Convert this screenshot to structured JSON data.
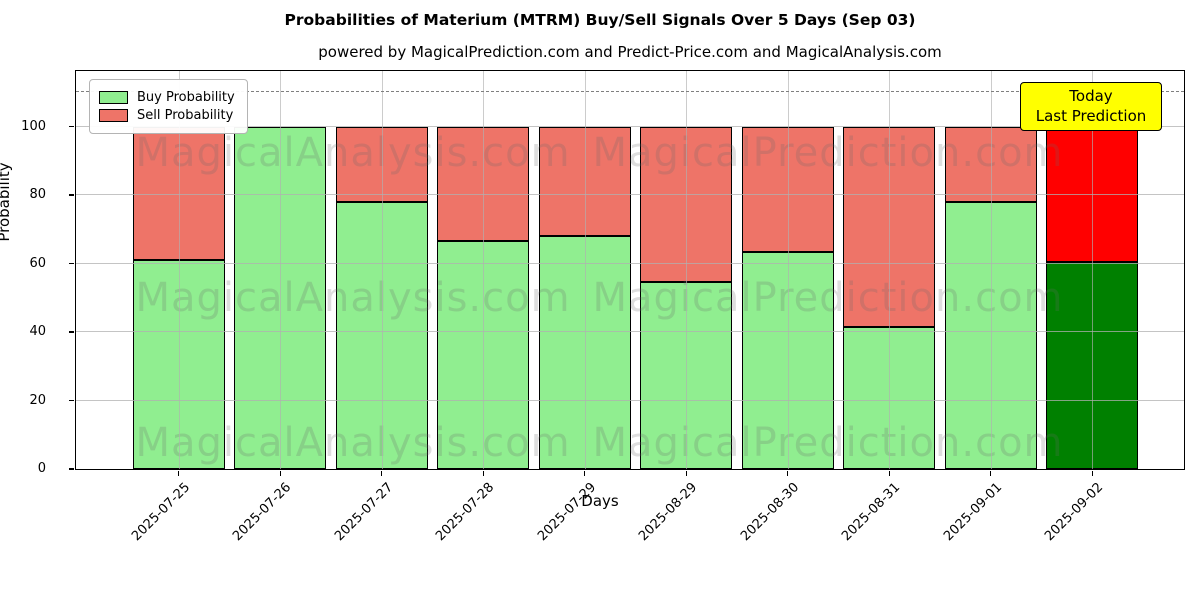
{
  "figure": {
    "title": "Probabilities of Materium (MTRM) Buy/Sell Signals Over 5 Days (Sep 03)",
    "subtitle": "powered by MagicalPrediction.com and Predict-Price.com and MagicalAnalysis.com"
  },
  "axes": {
    "ylabel": "Probability",
    "xlabel": "Days",
    "yticks": [
      0,
      20,
      40,
      60,
      80,
      100
    ]
  },
  "legend": {
    "items": [
      {
        "label": "Buy Probability",
        "color": "#90ee90"
      },
      {
        "label": "Sell Probability",
        "color": "#ee7468"
      }
    ]
  },
  "annotation": {
    "line1": "Today",
    "line2": "Last Prediction",
    "bg_color": "#ffff00"
  },
  "watermarks": {
    "left_text": "MagicalAnalysis.com",
    "right_text": "MagicalPrediction.com"
  },
  "chart_data": {
    "type": "bar",
    "stacked": true,
    "title": "Probabilities of Materium (MTRM) Buy/Sell Signals Over 5 Days (Sep 03)",
    "xlabel": "Days",
    "ylabel": "Probability",
    "categories": [
      "2025-07-25",
      "2025-07-26",
      "2025-07-27",
      "2025-07-28",
      "2025-07-29",
      "2025-08-29",
      "2025-08-30",
      "2025-08-31",
      "2025-09-01",
      "2025-09-02"
    ],
    "series": [
      {
        "name": "Buy Probability",
        "values": [
          61,
          100,
          78,
          66.5,
          68,
          54.5,
          63.5,
          41.5,
          78,
          60.5
        ]
      },
      {
        "name": "Sell Probability",
        "values": [
          39,
          0,
          22,
          33.5,
          32,
          45.5,
          36.5,
          58.5,
          22,
          39.5
        ]
      }
    ],
    "colors": {
      "buy": "#90ee90",
      "sell": "#ee7468",
      "today_buy": "#008000",
      "today_sell": "#ff0000",
      "edge": "#000000"
    },
    "today_index": 9,
    "ylim": [
      0,
      116.8
    ],
    "dashed_line_y": 110,
    "grid": true,
    "legend_position": "upper left"
  }
}
